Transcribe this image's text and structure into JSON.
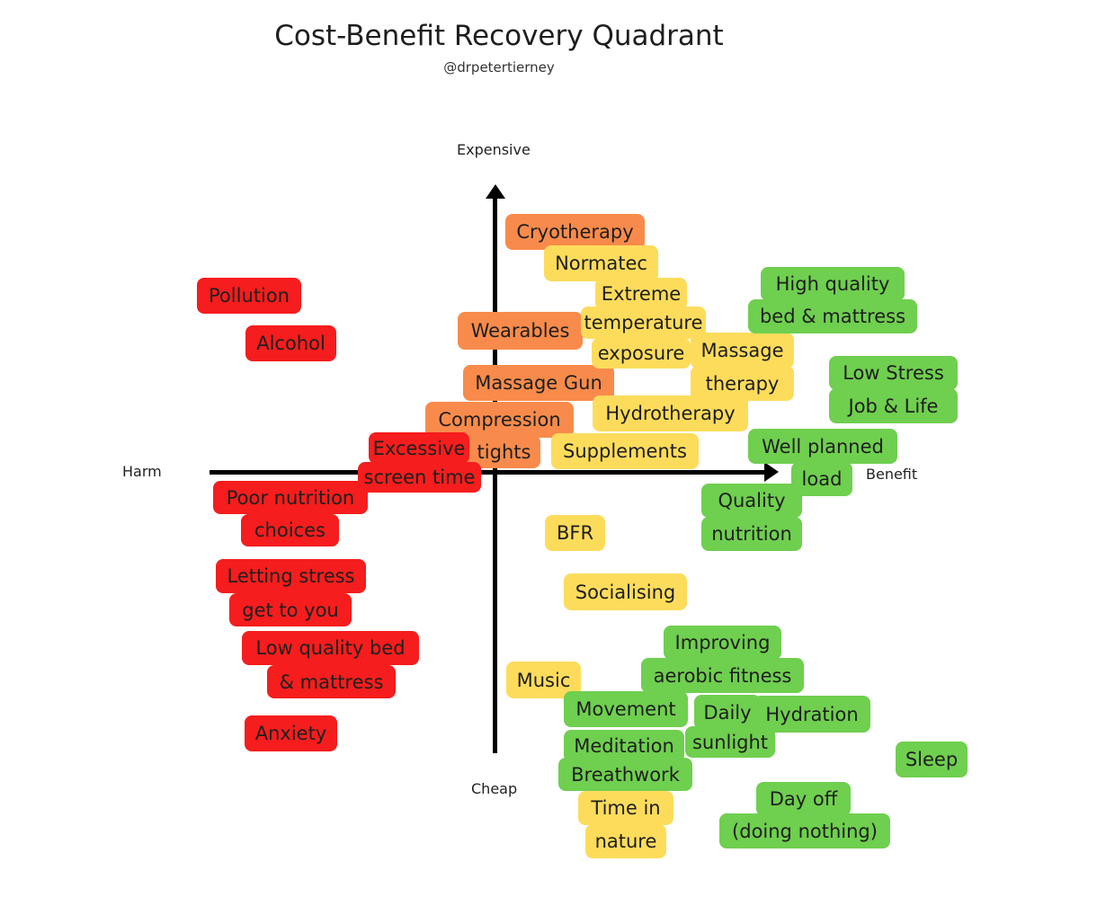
{
  "title": "Cost-Benefit Recovery Quadrant",
  "subtitle": "@drpetertierney",
  "axes": {
    "top": "Expensive",
    "bottom": "Cheap",
    "left": "Harm",
    "right": "Benefit"
  },
  "colors": {
    "red": "#F51D1D",
    "orange": "#F88B4B",
    "yellow": "#FDDC5C",
    "green": "#6FCF4F"
  },
  "items": [
    {
      "category": "red",
      "lines": [
        "Pollution"
      ]
    },
    {
      "category": "red",
      "lines": [
        "Alcohol"
      ]
    },
    {
      "category": "red",
      "lines": [
        "Poor nutrition",
        "choices"
      ]
    },
    {
      "category": "red",
      "lines": [
        "Letting stress",
        "get to you"
      ]
    },
    {
      "category": "red",
      "lines": [
        "Low quality bed",
        "& mattress"
      ]
    },
    {
      "category": "red",
      "lines": [
        "Anxiety"
      ]
    },
    {
      "category": "orange",
      "lines": [
        "Cryotherapy"
      ]
    },
    {
      "category": "orange",
      "lines": [
        "Wearables"
      ]
    },
    {
      "category": "orange",
      "lines": [
        "Massage Gun"
      ]
    },
    {
      "category": "orange",
      "lines": [
        "Compression",
        "tights"
      ]
    },
    {
      "category": "red",
      "lines": [
        "Excessive",
        "screen time"
      ]
    },
    {
      "category": "yellow",
      "lines": [
        "Normatec"
      ]
    },
    {
      "category": "yellow",
      "lines": [
        "Extreme",
        "temperature",
        "exposure"
      ]
    },
    {
      "category": "yellow",
      "lines": [
        "Massage",
        "therapy"
      ]
    },
    {
      "category": "yellow",
      "lines": [
        "Hydrotherapy"
      ]
    },
    {
      "category": "yellow",
      "lines": [
        "Supplements"
      ]
    },
    {
      "category": "yellow",
      "lines": [
        "BFR"
      ]
    },
    {
      "category": "yellow",
      "lines": [
        "Socialising"
      ]
    },
    {
      "category": "yellow",
      "lines": [
        "Music"
      ]
    },
    {
      "category": "yellow",
      "lines": [
        "Time in",
        "nature"
      ]
    },
    {
      "category": "green",
      "lines": [
        "High quality",
        "bed & mattress"
      ]
    },
    {
      "category": "green",
      "lines": [
        "Low Stress",
        "Job & Life"
      ]
    },
    {
      "category": "green",
      "lines": [
        "Well planned",
        "load"
      ]
    },
    {
      "category": "green",
      "lines": [
        "Quality",
        "nutrition"
      ]
    },
    {
      "category": "green",
      "lines": [
        "Improving",
        "aerobic fitness"
      ]
    },
    {
      "category": "green",
      "lines": [
        "Movement"
      ]
    },
    {
      "category": "green",
      "lines": [
        "Daily",
        "sunlight"
      ]
    },
    {
      "category": "green",
      "lines": [
        "Hydration"
      ]
    },
    {
      "category": "green",
      "lines": [
        "Meditation",
        "Breathwork"
      ]
    },
    {
      "category": "green",
      "lines": [
        "Sleep"
      ]
    },
    {
      "category": "green",
      "lines": [
        "Day off",
        "(doing nothing)"
      ]
    }
  ]
}
